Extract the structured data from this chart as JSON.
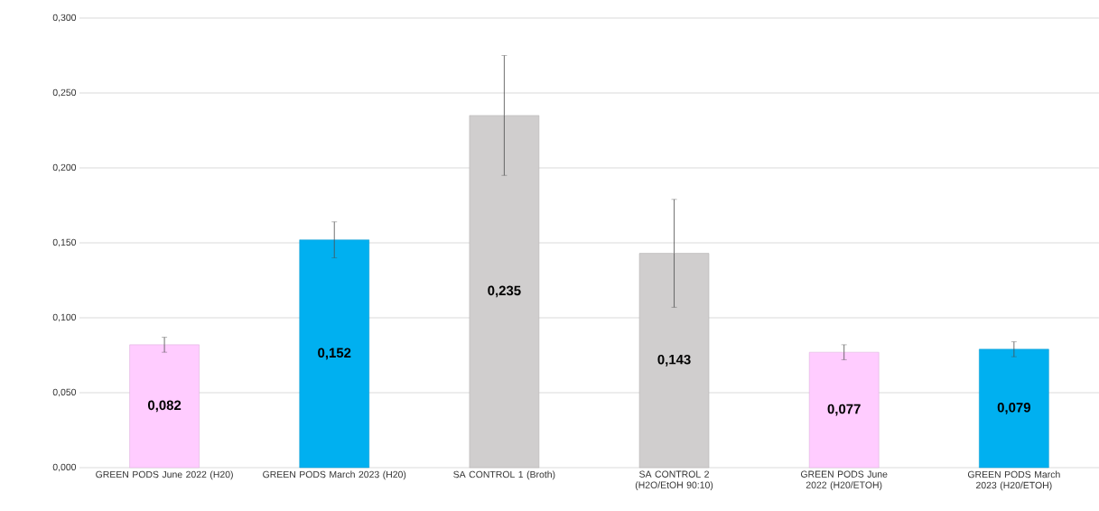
{
  "chart_data": {
    "type": "bar",
    "categories": [
      "GREEN PODS June 2022 (H20)",
      "GREEN PODS March 2023 (H20)",
      "SA CONTROL 1 (Broth)",
      "SA CONTROL 2 (H2O/EtOH 90:10)",
      "GREEN PODS June 2022 (H20/ETOH)",
      "GREEN PODS March 2023 (H20/ETOH)"
    ],
    "values": [
      0.082,
      0.152,
      0.235,
      0.143,
      0.077,
      0.079
    ],
    "colors": [
      "#ffccff",
      "#00b0f0",
      "#d0cece",
      "#d0cece",
      "#ffccff",
      "#00b0f0"
    ],
    "errors": [
      0.005,
      0.012,
      0.04,
      0.036,
      0.005,
      0.005
    ],
    "value_labels": [
      "0,082",
      "0,152",
      "0,235",
      "0,143",
      "0,077",
      "0,079"
    ],
    "ylim": [
      0,
      0.3
    ],
    "yticks": [
      {
        "value": 0,
        "label": "0,000"
      },
      {
        "value": 0.05,
        "label": "0,050"
      },
      {
        "value": 0.1,
        "label": "0,100"
      },
      {
        "value": 0.15,
        "label": "0,150"
      },
      {
        "value": 0.2,
        "label": "0,200"
      },
      {
        "value": 0.25,
        "label": "0,250"
      },
      {
        "value": 0.3,
        "label": "0,300"
      }
    ],
    "grid": "y"
  }
}
